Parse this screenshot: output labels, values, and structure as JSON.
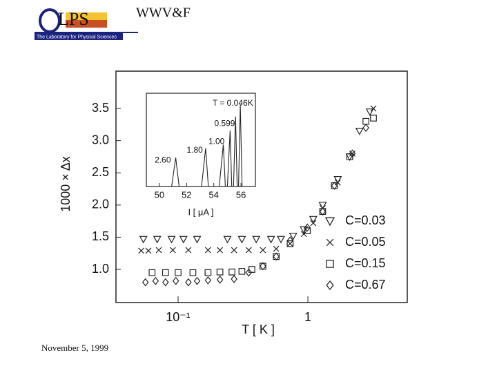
{
  "slide": {
    "title": "WWV&F",
    "footer": "November 5, 1999",
    "logo_text": "LPS",
    "logo_caption": "The Laboratory for Physical Sciences"
  },
  "chart_data": [
    {
      "type": "scatter",
      "x_label": "T [ K ]",
      "y_label": "1000 × Δx",
      "xlim": [
        0.0332,
        5.83
      ],
      "xscale": "log",
      "xticks": [
        {
          "value": 0.1,
          "label": "10⁻¹"
        },
        1
      ],
      "ylim": [
        0.485,
        4.08
      ],
      "yticks": [
        {
          "value": 1,
          "label": "1.0"
        },
        1.5,
        {
          "value": 2,
          "label": "2.0"
        },
        2.5,
        {
          "value": 3,
          "label": "3.0"
        },
        3.5
      ],
      "legend": "lower right",
      "series": [
        {
          "name": "C=0.03",
          "marker": "triangle-down",
          "color": "#222",
          "x": [
            0.054,
            0.069,
            0.089,
            0.11,
            0.14,
            0.24,
            0.31,
            0.4,
            0.52,
            0.62,
            0.77,
            0.93,
            1.1,
            1.3,
            1.7,
            2.1,
            2.5,
            3.0
          ],
          "values": [
            1.47,
            1.47,
            1.47,
            1.47,
            1.47,
            1.47,
            1.47,
            1.47,
            1.47,
            1.47,
            1.52,
            1.62,
            1.78,
            2.0,
            2.4,
            2.75,
            3.15,
            3.45
          ]
        },
        {
          "name": "C=0.05",
          "marker": "x",
          "color": "#222",
          "x": [
            0.052,
            0.059,
            0.071,
            0.091,
            0.12,
            0.17,
            0.21,
            0.27,
            0.35,
            0.45,
            0.57,
            0.73,
            0.93,
            1.1,
            1.3,
            1.7,
            2.2,
            3.2
          ],
          "values": [
            1.29,
            1.29,
            1.3,
            1.3,
            1.3,
            1.3,
            1.3,
            1.3,
            1.3,
            1.3,
            1.32,
            1.4,
            1.55,
            1.72,
            1.95,
            2.35,
            2.8,
            3.5
          ]
        },
        {
          "name": "C=0.15",
          "marker": "square",
          "color": "#222",
          "x": [
            0.063,
            0.08,
            0.1,
            0.13,
            0.17,
            0.21,
            0.26,
            0.31,
            0.37,
            0.45,
            0.57,
            0.73,
            0.99,
            1.3,
            1.6,
            2.1,
            2.8,
            3.2
          ],
          "values": [
            0.95,
            0.95,
            0.95,
            0.95,
            0.95,
            0.96,
            0.96,
            0.97,
            1.0,
            1.05,
            1.2,
            1.4,
            1.6,
            1.9,
            2.3,
            2.75,
            3.3,
            3.35
          ]
        },
        {
          "name": "C=0.67",
          "marker": "diamond",
          "color": "#222",
          "x": [
            0.056,
            0.067,
            0.08,
            0.096,
            0.12,
            0.14,
            0.17,
            0.21,
            0.27,
            0.35,
            0.45,
            0.57,
            0.73,
            0.99,
            1.3,
            1.6,
            2.2,
            2.8
          ],
          "values": [
            0.8,
            0.82,
            0.8,
            0.82,
            0.8,
            0.82,
            0.83,
            0.84,
            0.85,
            0.95,
            1.05,
            1.2,
            1.45,
            1.65,
            1.9,
            2.3,
            2.8,
            3.2
          ]
        }
      ]
    },
    {
      "type": "line",
      "x_label": "I [ μA ]",
      "xlim": [
        49.04,
        57.06
      ],
      "xticks": [
        50,
        52,
        54,
        56
      ],
      "ylim": [
        0,
        1
      ],
      "x": [
        49.5,
        50.9,
        51.2,
        51.45,
        53.1,
        53.4,
        53.6,
        54.4,
        54.7,
        54.85,
        55.0,
        55.2,
        55.32,
        55.45,
        55.6,
        55.72,
        55.82,
        55.95,
        56.08,
        57.0
      ],
      "values": [
        0,
        0,
        0.31,
        0,
        0,
        0.41,
        0,
        0,
        0.45,
        0,
        0,
        0.6,
        0,
        0,
        0.75,
        0,
        0,
        0.88,
        0,
        0
      ],
      "annotations": [
        {
          "text": "T = 0.046K",
          "x": 55.4,
          "y": 0.89
        },
        {
          "text": "0.599",
          "x": 54.8,
          "y": 0.67
        },
        {
          "text": "1.00",
          "x": 54.2,
          "y": 0.48
        },
        {
          "text": "1.80",
          "x": 52.6,
          "y": 0.385
        },
        {
          "text": "2.60",
          "x": 50.25,
          "y": 0.28
        }
      ]
    }
  ]
}
